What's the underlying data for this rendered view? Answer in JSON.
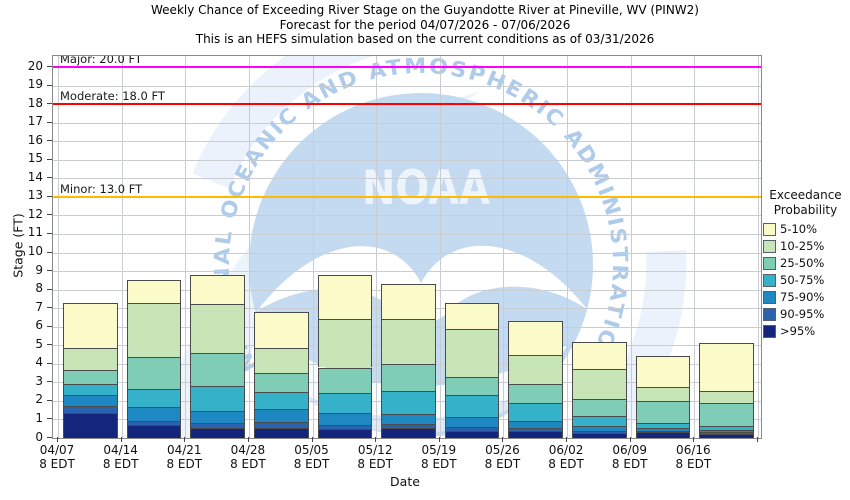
{
  "title": {
    "line1": "Weekly Chance of Exceeding River Stage on the Guyandotte River at Pineville, WV (PINW2)",
    "line2": "Forecast for the period 04/07/2026 - 07/06/2026",
    "line3": "This is an HEFS simulation based on the current conditions as of 03/31/2026"
  },
  "y_axis": {
    "label": "Stage (FT)",
    "min": 0,
    "max": 20,
    "tick_step": 1
  },
  "x_axis": {
    "label": "Date"
  },
  "legend": {
    "title": "Exceedance\nProbability",
    "items": [
      {
        "label": "5-10%",
        "color": "#FBFBC9"
      },
      {
        "label": "10-25%",
        "color": "#C7E5B6"
      },
      {
        "label": "25-50%",
        "color": "#7FCDB6"
      },
      {
        "label": "50-75%",
        "color": "#35B2C9"
      },
      {
        "label": "75-90%",
        "color": "#1E88C2"
      },
      {
        "label": "90-95%",
        "color": "#2B62AE"
      },
      {
        "label": ">95%",
        "color": "#14267B"
      }
    ]
  },
  "watermark": {
    "arc_text": "NATIONAL OCEANIC AND ATMOSPHERIC ADMINISTRATION",
    "emblem_text": "NOAA",
    "disc_color": "#C3DAF1",
    "text_color": "#AECBEC"
  },
  "chart_data": {
    "type": "bar",
    "stacked": true,
    "title": "Weekly Chance of Exceeding River Stage on the Guyandotte River at Pineville, WV (PINW2)",
    "xlabel": "Date",
    "ylabel": "Stage (FT)",
    "ylim": [
      0,
      20
    ],
    "grid": true,
    "legend_position": "right",
    "categories": [
      "04/07",
      "04/14",
      "04/21",
      "04/28",
      "05/05",
      "05/12",
      "05/19",
      "05/26",
      "06/02",
      "06/09",
      "06/16"
    ],
    "category_sublabel": "8 EDT",
    "values_meaning": "cumulative stage (FT) at the top of each exceedance-probability band",
    "series": [
      {
        "name": "5-10%",
        "color": "#FBFBC9",
        "values": [
          7.3,
          8.5,
          8.8,
          6.8,
          8.8,
          8.3,
          7.3,
          6.3,
          5.2,
          4.4,
          5.1
        ]
      },
      {
        "name": "10-25%",
        "color": "#C7E5B6",
        "values": [
          4.85,
          7.3,
          7.2,
          4.85,
          6.4,
          6.4,
          5.85,
          4.5,
          3.7,
          2.75,
          2.55
        ]
      },
      {
        "name": "25-50%",
        "color": "#7FCDB6",
        "values": [
          3.65,
          4.35,
          4.6,
          3.5,
          3.8,
          4.0,
          3.3,
          2.9,
          2.1,
          2.0,
          1.9
        ]
      },
      {
        "name": "50-75%",
        "color": "#35B2C9",
        "values": [
          2.9,
          2.65,
          2.8,
          2.5,
          2.4,
          2.55,
          2.3,
          1.9,
          1.2,
          0.8,
          0.65
        ]
      },
      {
        "name": "75-90%",
        "color": "#1E88C2",
        "values": [
          2.3,
          1.65,
          1.45,
          1.55,
          1.35,
          1.3,
          1.15,
          0.9,
          0.65,
          0.55,
          0.45
        ]
      },
      {
        "name": "90-95%",
        "color": "#2B62AE",
        "values": [
          1.75,
          0.9,
          0.8,
          0.85,
          0.7,
          0.75,
          0.6,
          0.55,
          0.4,
          0.4,
          0.3
        ]
      },
      {
        "name": ">95%",
        "color": "#14267B",
        "values": [
          1.35,
          0.7,
          0.55,
          0.55,
          0.5,
          0.55,
          0.4,
          0.4,
          0.27,
          0.3,
          0.22
        ]
      }
    ],
    "thresholds": [
      {
        "name": "Major",
        "value": 20.0,
        "label": "Major: 20.0 FT",
        "color": "#FF00FF"
      },
      {
        "name": "Moderate",
        "value": 18.0,
        "label": "Moderate: 18.0 FT",
        "color": "#FF0000"
      },
      {
        "name": "Minor",
        "value": 13.0,
        "label": "Minor: 13.0 FT",
        "color": "#FFBA00"
      }
    ]
  }
}
